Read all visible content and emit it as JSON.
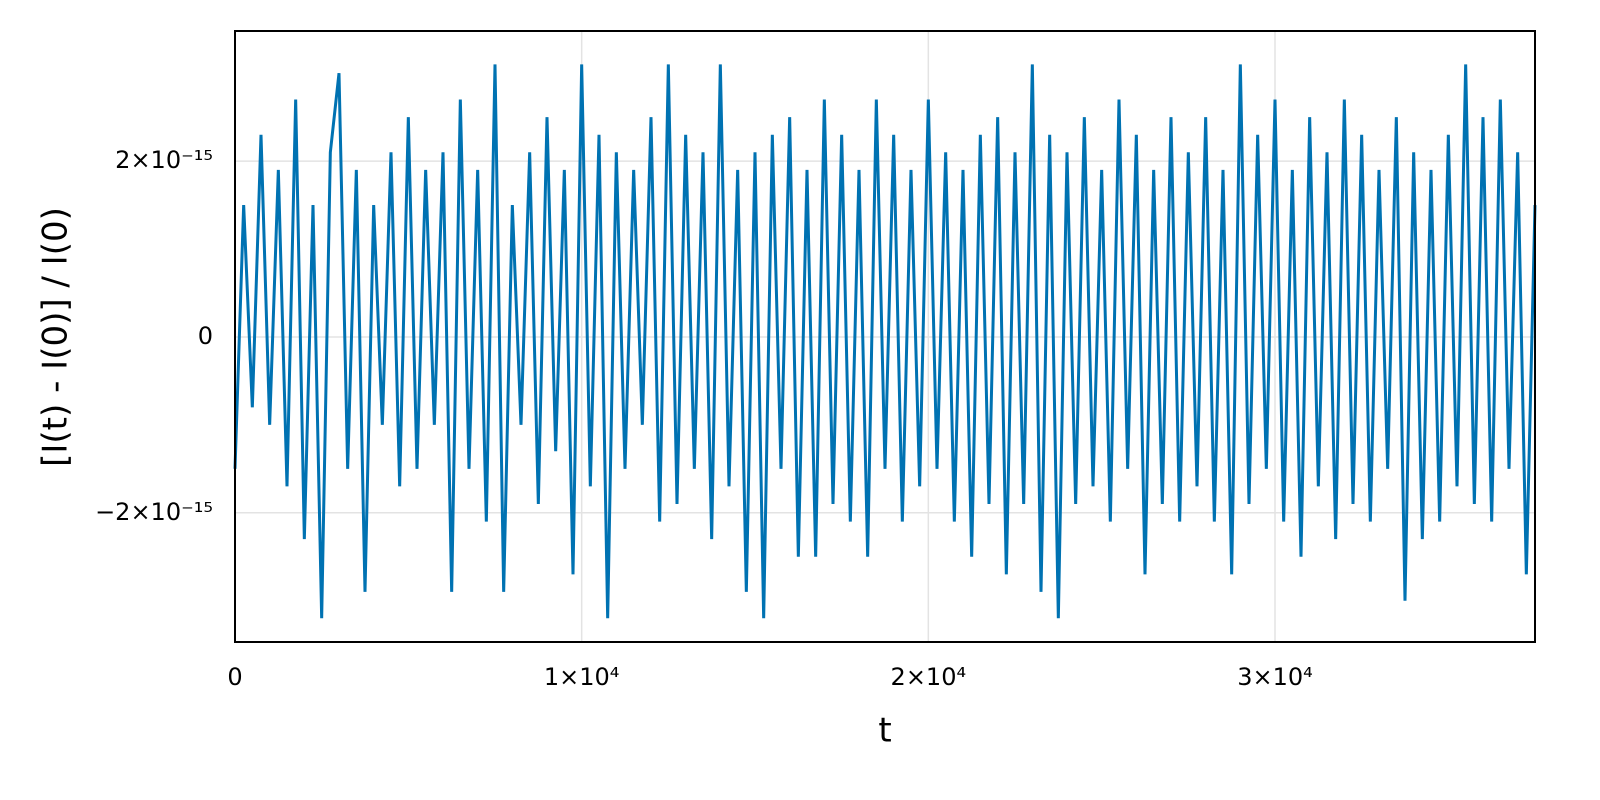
{
  "chart_data": {
    "type": "line",
    "x_label": "t",
    "y_label": "[I(t) - I(0)] / I(0)",
    "xlim": [
      0,
      37500
    ],
    "ylim": [
      -3.47e-15,
      3.48e-15
    ],
    "xticks": [
      0,
      {
        "value": 10000,
        "label": "1×10⁴"
      },
      {
        "value": 20000,
        "label": "2×10⁴"
      },
      {
        "value": 30000,
        "label": "3×10⁴"
      }
    ],
    "yticks": [
      {
        "value": -2e-15,
        "label": "−2×10⁻¹⁵"
      },
      0,
      {
        "value": 2e-15,
        "label": "2×10⁻¹⁵"
      }
    ],
    "grid": true,
    "x": [
      0,
      250,
      500,
      750,
      1000,
      1250,
      1500,
      1750,
      2000,
      2250,
      2500,
      2750,
      3000,
      3250,
      3500,
      3750,
      4000,
      4250,
      4500,
      4750,
      5000,
      5250,
      5500,
      5750,
      6000,
      6250,
      6500,
      6750,
      7000,
      7250,
      7500,
      7750,
      8000,
      8250,
      8500,
      8750,
      9000,
      9250,
      9500,
      9750,
      10000,
      10250,
      10500,
      10750,
      11000,
      11250,
      11500,
      11750,
      12000,
      12250,
      12500,
      12750,
      13000,
      13250,
      13500,
      13750,
      14000,
      14250,
      14500,
      14750,
      15000,
      15250,
      15500,
      15750,
      16000,
      16250,
      16500,
      16750,
      17000,
      17250,
      17500,
      17750,
      18000,
      18250,
      18500,
      18750,
      19000,
      19250,
      19500,
      19750,
      20000,
      20250,
      20500,
      20750,
      21000,
      21250,
      21500,
      21750,
      22000,
      22250,
      22500,
      22750,
      23000,
      23250,
      23500,
      23750,
      24000,
      24250,
      24500,
      24750,
      25000,
      25250,
      25500,
      25750,
      26000,
      26250,
      26500,
      26750,
      27000,
      27250,
      27500,
      27750,
      28000,
      28250,
      28500,
      28750,
      29000,
      29250,
      29500,
      29750,
      30000,
      30250,
      30500,
      30750,
      31000,
      31250,
      31500,
      31750,
      32000,
      32250,
      32500,
      32750,
      33000,
      33250,
      33500,
      33750,
      34000,
      34250,
      34500,
      34750,
      35000,
      35250,
      35500,
      35750,
      36000,
      36250,
      36500,
      36750,
      37000,
      37250,
      37500
    ],
    "series": [
      {
        "color": "#0072b2",
        "values": [
          -1.5e-15,
          1.5e-15,
          -8e-16,
          2.3e-15,
          -1e-15,
          1.9e-15,
          -1.7e-15,
          2.7e-15,
          -2.3e-15,
          1.5e-15,
          -3.2e-15,
          2.1e-15,
          3e-15,
          -1.5e-15,
          1.9e-15,
          -2.9e-15,
          1.5e-15,
          -1e-15,
          2.1e-15,
          -1.7e-15,
          2.5e-15,
          -1.5e-15,
          1.9e-15,
          -1e-15,
          2.1e-15,
          -2.9e-15,
          2.7e-15,
          -1.5e-15,
          1.9e-15,
          -2.1e-15,
          3.1e-15,
          -2.9e-15,
          1.5e-15,
          -1e-15,
          2.1e-15,
          -1.9e-15,
          2.5e-15,
          -1.3e-15,
          1.9e-15,
          -2.7e-15,
          3.1e-15,
          -1.7e-15,
          2.3e-15,
          -3.2e-15,
          2.1e-15,
          -1.5e-15,
          1.9e-15,
          -1e-15,
          2.5e-15,
          -2.1e-15,
          3.1e-15,
          -1.9e-15,
          2.3e-15,
          -1.5e-15,
          2.1e-15,
          -2.3e-15,
          3.1e-15,
          -1.7e-15,
          1.9e-15,
          -2.9e-15,
          2.1e-15,
          -3.2e-15,
          2.3e-15,
          -1.5e-15,
          2.5e-15,
          -2.5e-15,
          1.9e-15,
          -2.5e-15,
          2.7e-15,
          -1.9e-15,
          2.3e-15,
          -2.1e-15,
          1.9e-15,
          -2.5e-15,
          2.7e-15,
          -1.5e-15,
          2.3e-15,
          -2.1e-15,
          1.9e-15,
          -1.7e-15,
          2.7e-15,
          -1.5e-15,
          2.1e-15,
          -2.1e-15,
          1.9e-15,
          -2.5e-15,
          2.3e-15,
          -1.9e-15,
          2.5e-15,
          -2.7e-15,
          2.1e-15,
          -1.9e-15,
          3.1e-15,
          -2.9e-15,
          2.3e-15,
          -3.2e-15,
          2.1e-15,
          -1.9e-15,
          2.5e-15,
          -1.7e-15,
          1.9e-15,
          -2.1e-15,
          2.7e-15,
          -1.5e-15,
          2.3e-15,
          -2.7e-15,
          1.9e-15,
          -1.9e-15,
          2.5e-15,
          -2.1e-15,
          2.1e-15,
          -1.7e-15,
          2.5e-15,
          -2.1e-15,
          1.9e-15,
          -2.7e-15,
          3.1e-15,
          -1.9e-15,
          2.3e-15,
          -1.5e-15,
          2.7e-15,
          -2.1e-15,
          1.9e-15,
          -2.5e-15,
          2.5e-15,
          -1.7e-15,
          2.1e-15,
          -2.3e-15,
          2.7e-15,
          -1.9e-15,
          2.3e-15,
          -2.1e-15,
          1.9e-15,
          -1.5e-15,
          2.5e-15,
          -3e-15,
          2.1e-15,
          -2.3e-15,
          1.9e-15,
          -2.1e-15,
          2.3e-15,
          -1.7e-15,
          3.1e-15,
          -1.9e-15,
          2.5e-15,
          -2.1e-15,
          2.7e-15,
          -1.5e-15,
          2.1e-15,
          -2.7e-15,
          1.5e-15
        ]
      }
    ]
  }
}
